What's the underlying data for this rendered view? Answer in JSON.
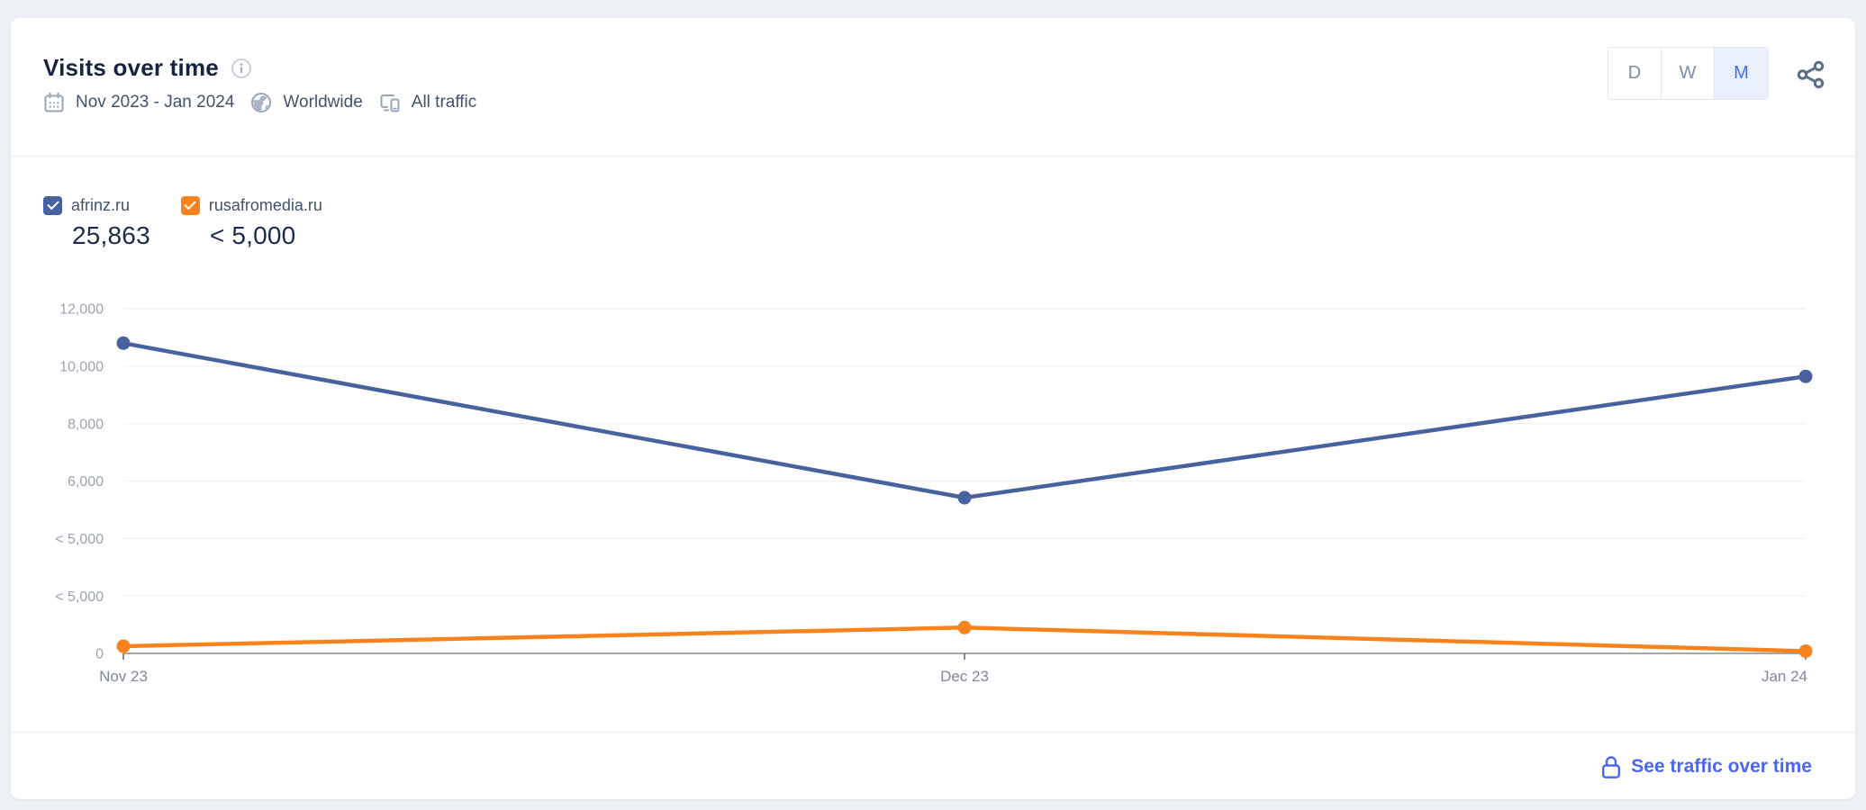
{
  "header": {
    "title": "Visits over time",
    "date_range": "Nov 2023 - Jan 2024",
    "region": "Worldwide",
    "traffic_filter": "All traffic",
    "granularity": [
      {
        "label": "D",
        "active": false
      },
      {
        "label": "W",
        "active": false
      },
      {
        "label": "M",
        "active": true
      }
    ],
    "icons": [
      "info-icon",
      "calendar-icon",
      "globe-icon",
      "all-traffic-icon",
      "share-icon"
    ]
  },
  "legend": [
    {
      "name": "afrinz.ru",
      "value": "25,863",
      "color": "#48619F"
    },
    {
      "name": "rusafromedia.ru",
      "value": "< 5,000",
      "color": "#F9821D"
    }
  ],
  "chart_data": {
    "type": "line",
    "title": "Visits over time",
    "x": [
      "Nov 23",
      "Dec 23",
      "Jan 24"
    ],
    "series": [
      {
        "name": "afrinz.ru",
        "color": "#48619F",
        "values": [
          10800,
          5420,
          9643
        ],
        "total": "25,863"
      },
      {
        "name": "rusafromedia.ru",
        "color": "#F9821D",
        "values": [
          250,
          900,
          80
        ],
        "total": "< 5,000",
        "masked": "values below 5,000 shown as < 5,000"
      }
    ],
    "y_ticks": [
      "12,000",
      "10,000",
      "8,000",
      "6,000",
      "< 5,000",
      "< 5,000",
      "0"
    ],
    "ylim": [
      0,
      12000
    ],
    "grid": true,
    "legend_position": "top-left"
  },
  "footer": {
    "link_label": "See traffic over time",
    "icon": "lock-icon",
    "accent_color": "#4A66F5"
  },
  "colors": {
    "series_blue": "#48619F",
    "series_orange": "#F9821D",
    "active_granularity_bg": "#E9EFFC",
    "active_granularity_text": "#3E6EF4",
    "link_blue": "#4A66F5",
    "title_text": "#16243F",
    "gridline": "#F1F2F5",
    "axis_line": "#8A8A8A"
  }
}
